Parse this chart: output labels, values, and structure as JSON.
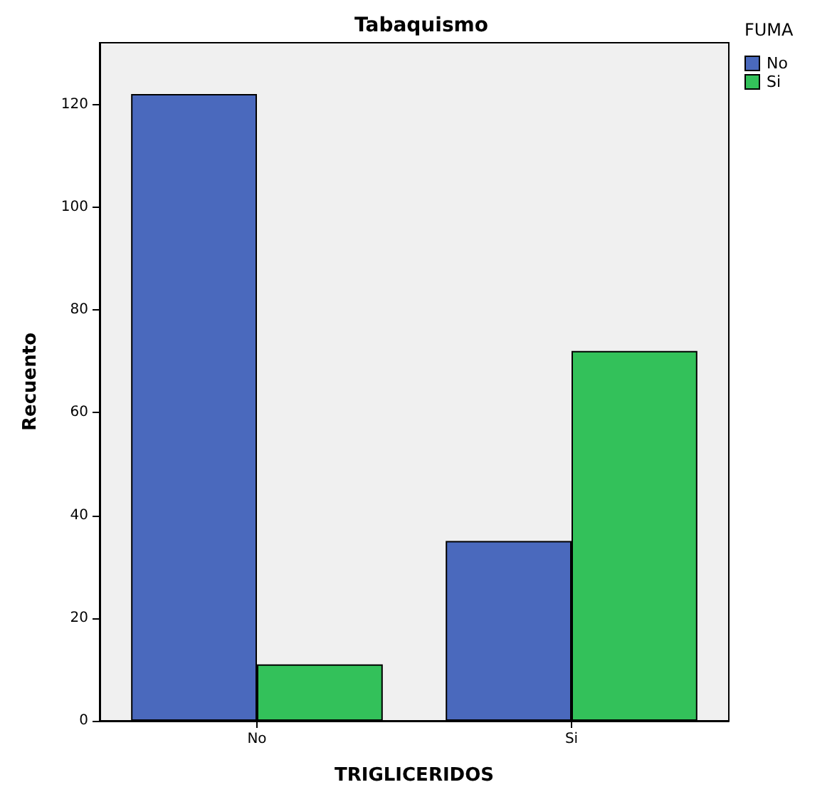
{
  "chart_data": {
    "type": "bar",
    "title": "Tabaquismo",
    "xlabel": "TRIGLICERIDOS",
    "ylabel": "Recuento",
    "legend_title": "FUMA",
    "categories": [
      "No",
      "Si"
    ],
    "series": [
      {
        "name": "No",
        "color": "#4a69bd",
        "values": [
          122,
          35
        ]
      },
      {
        "name": "Si",
        "color": "#33c15a",
        "values": [
          11,
          72
        ]
      }
    ],
    "ylim": [
      0,
      132
    ],
    "yticks": [
      0,
      20,
      40,
      60,
      80,
      100,
      120
    ],
    "grid": false,
    "legend": "top right"
  }
}
